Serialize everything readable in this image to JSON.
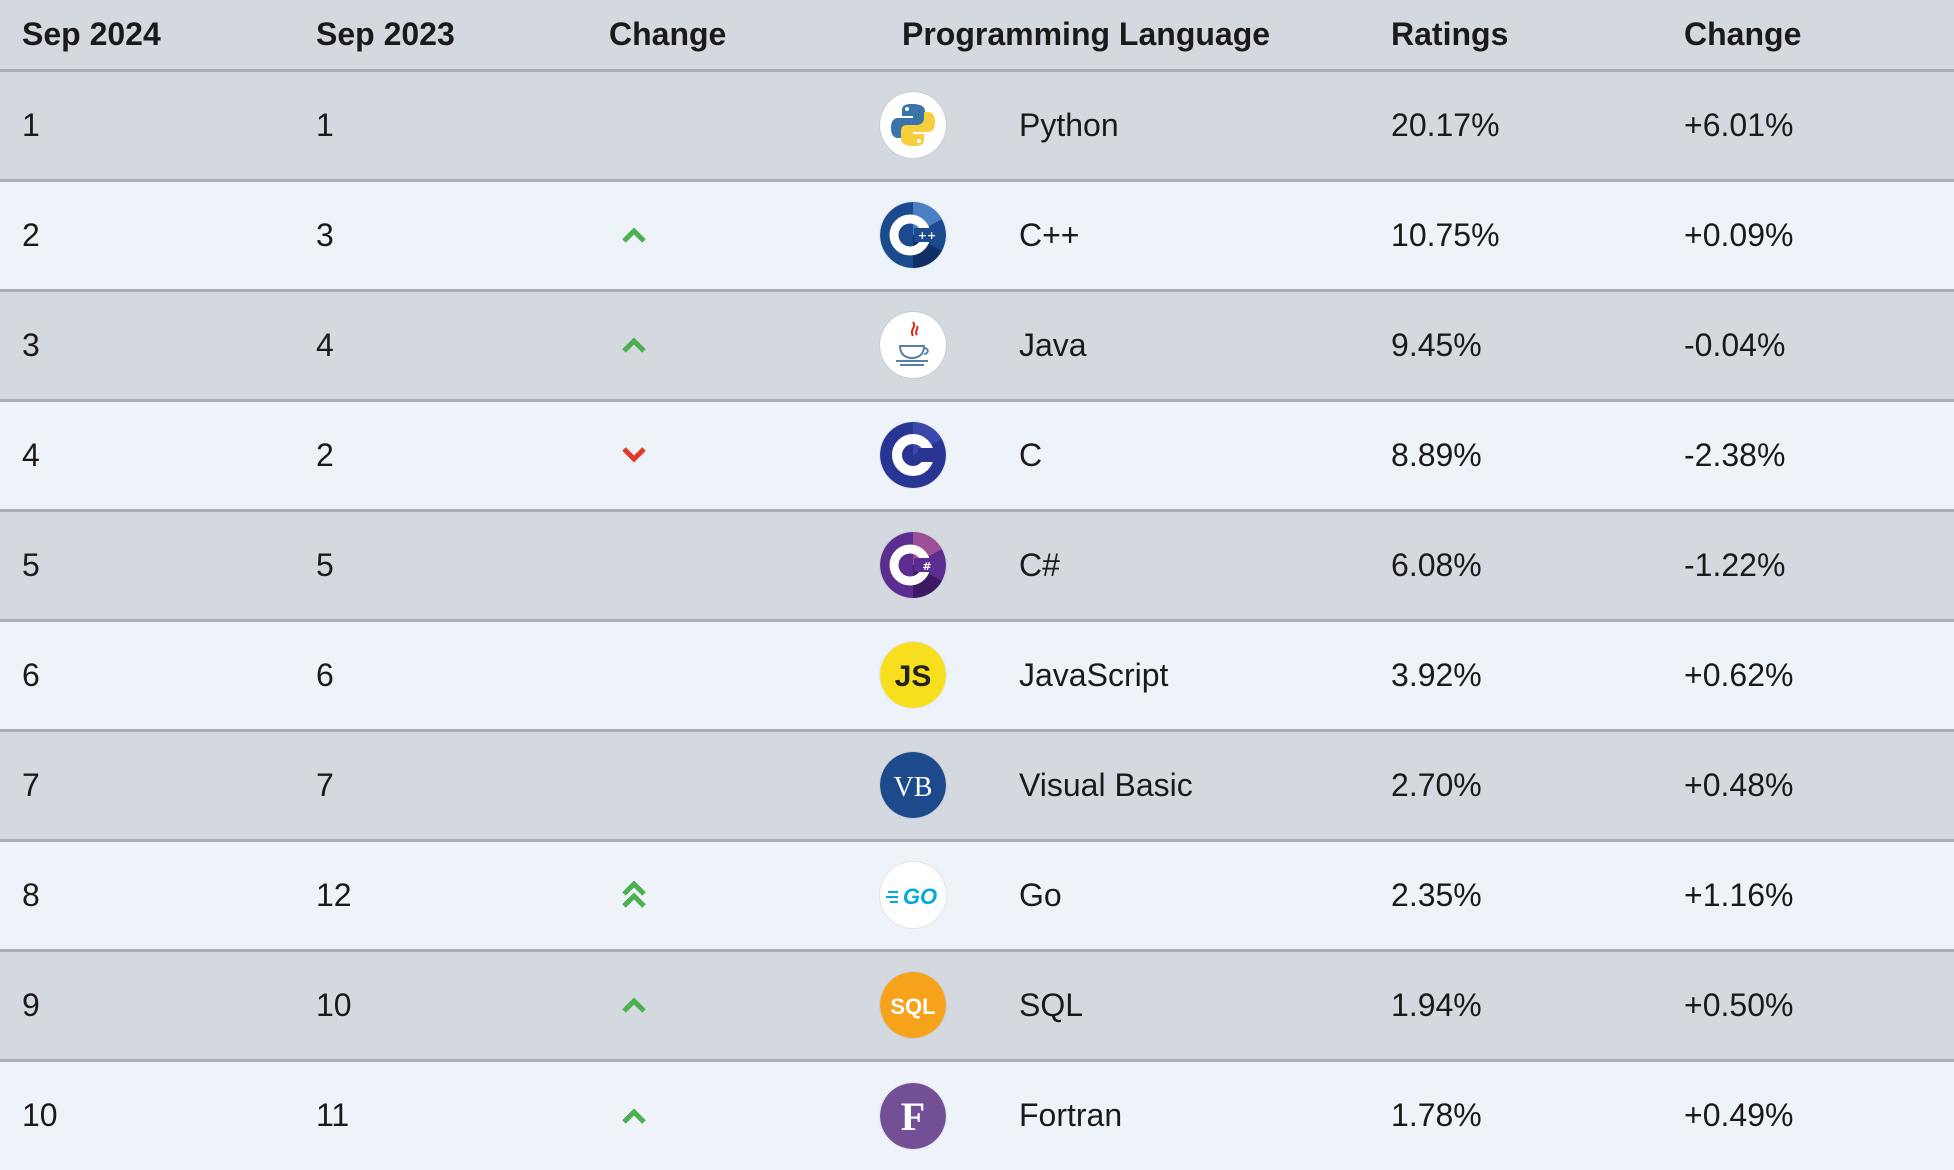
{
  "headers": {
    "sep2024": "Sep 2024",
    "sep2023": "Sep 2023",
    "change_rank": "Change",
    "language": "Programming Language",
    "ratings": "Ratings",
    "change_pct": "Change"
  },
  "rows": [
    {
      "rank2024": "1",
      "rank2023": "1",
      "trend": "none",
      "logo": "python-icon",
      "language": "Python",
      "rating": "20.17%",
      "change": "+6.01%"
    },
    {
      "rank2024": "2",
      "rank2023": "3",
      "trend": "up",
      "logo": "cpp-icon",
      "language": "C++",
      "rating": "10.75%",
      "change": "+0.09%"
    },
    {
      "rank2024": "3",
      "rank2023": "4",
      "trend": "up",
      "logo": "java-icon",
      "language": "Java",
      "rating": "9.45%",
      "change": "-0.04%"
    },
    {
      "rank2024": "4",
      "rank2023": "2",
      "trend": "down",
      "logo": "c-icon",
      "language": "C",
      "rating": "8.89%",
      "change": "-2.38%"
    },
    {
      "rank2024": "5",
      "rank2023": "5",
      "trend": "none",
      "logo": "csharp-icon",
      "language": "C#",
      "rating": "6.08%",
      "change": "-1.22%"
    },
    {
      "rank2024": "6",
      "rank2023": "6",
      "trend": "none",
      "logo": "javascript-icon",
      "language": "JavaScript",
      "rating": "3.92%",
      "change": "+0.62%"
    },
    {
      "rank2024": "7",
      "rank2023": "7",
      "trend": "none",
      "logo": "visual-basic-icon",
      "language": "Visual Basic",
      "rating": "2.70%",
      "change": "+0.48%"
    },
    {
      "rank2024": "8",
      "rank2023": "12",
      "trend": "up-double",
      "logo": "go-icon",
      "language": "Go",
      "rating": "2.35%",
      "change": "+1.16%"
    },
    {
      "rank2024": "9",
      "rank2023": "10",
      "trend": "up",
      "logo": "sql-icon",
      "language": "SQL",
      "rating": "1.94%",
      "change": "+0.50%"
    },
    {
      "rank2024": "10",
      "rank2023": "11",
      "trend": "up",
      "logo": "fortran-icon",
      "language": "Fortran",
      "rating": "1.78%",
      "change": "+0.49%"
    }
  ],
  "logo_text": {
    "javascript": "JS",
    "visual_basic": "VB",
    "go": "GO",
    "sql": "SQL",
    "fortran": "F"
  },
  "colors": {
    "header_bg": "#d4d9e0",
    "row_odd_bg": "#d4d9e0",
    "row_even_bg": "#eef3fa",
    "divider": "#a9aeb5",
    "trend_up": "#4caf50",
    "trend_down": "#e03a2a"
  }
}
